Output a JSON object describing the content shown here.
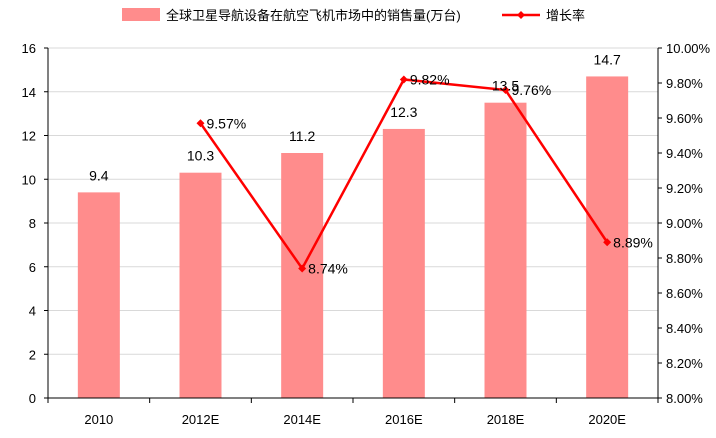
{
  "chart_data": {
    "type": "bar",
    "categories": [
      "2010",
      "2012E",
      "2014E",
      "2016E",
      "2018E",
      "2020E"
    ],
    "series": [
      {
        "name": "全球卫星导航设备在航空飞机市场中的销售量(万台)",
        "type": "bar",
        "axis": "left",
        "color": "#ff8c8c",
        "values": [
          9.4,
          10.3,
          11.2,
          12.3,
          13.5,
          14.7
        ],
        "labels": [
          "9.4",
          "10.3",
          "11.2",
          "12.3",
          "13.5",
          "14.7"
        ]
      },
      {
        "name": "增长率",
        "type": "line",
        "axis": "right",
        "color": "#ff0000",
        "values": [
          null,
          9.57,
          8.74,
          9.82,
          9.76,
          8.89
        ],
        "labels": [
          "",
          "9.57%",
          "8.74%",
          "9.82%",
          "9.76%",
          "8.89%"
        ]
      }
    ],
    "y_left": {
      "min": 0,
      "max": 16,
      "ticks": [
        "0",
        "2",
        "4",
        "6",
        "8",
        "10",
        "12",
        "14",
        "16"
      ]
    },
    "y_right": {
      "min": 8.0,
      "max": 10.0,
      "ticks": [
        "8.00%",
        "8.20%",
        "8.40%",
        "8.60%",
        "8.80%",
        "9.00%",
        "9.20%",
        "9.40%",
        "9.60%",
        "9.80%",
        "10.00%"
      ]
    },
    "grid": true,
    "legend_position": "top"
  }
}
